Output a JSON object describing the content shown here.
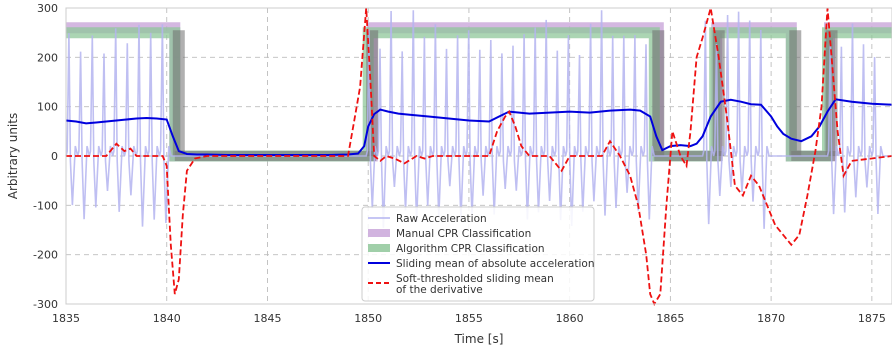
{
  "chart_data": {
    "type": "line",
    "xlabel": "Time [s]",
    "ylabel": "Arbitrary units",
    "xlim": [
      1835,
      1876
    ],
    "ylim": [
      -300,
      300
    ],
    "xticks": [
      1835,
      1840,
      1845,
      1850,
      1855,
      1860,
      1865,
      1870,
      1875
    ],
    "yticks": [
      -300,
      -200,
      -100,
      0,
      100,
      200,
      300
    ],
    "grid": true,
    "legend_position": "lower-center",
    "raw_acceleration": {
      "name": "Raw Acceleration",
      "color": "#b4b4f0",
      "segments": [
        {
          "start": 1835.0,
          "end": 1840.4,
          "period": 0.58
        },
        {
          "start": 1849.9,
          "end": 1864.2,
          "period": 0.55
        },
        {
          "start": 1866.6,
          "end": 1870.0,
          "period": 0.55
        },
        {
          "start": 1872.8,
          "end": 1876.0,
          "period": 0.55
        }
      ],
      "peak_range": [
        200,
        300
      ],
      "trough_range": [
        -150,
        -60
      ]
    },
    "manual_classification": {
      "name": "Manual CPR Classification",
      "color": "#c9a6d9",
      "x": [
        1835.0,
        1840.4,
        1840.4,
        1850.2,
        1850.2,
        1864.4,
        1864.4,
        1867.3,
        1867.3,
        1871.0,
        1871.0,
        1872.9,
        1872.9,
        1876.0
      ],
      "y": [
        260,
        260,
        0,
        0,
        260,
        260,
        0,
        0,
        260,
        260,
        0,
        0,
        260,
        260
      ]
    },
    "algorithm_classification": {
      "name": "Algorithm CPR Classification",
      "color": "#8fc79a",
      "x": [
        1835.0,
        1840.4,
        1840.4,
        1850.0,
        1850.0,
        1864.2,
        1864.2,
        1867.2,
        1867.2,
        1871.0,
        1871.0,
        1872.8,
        1872.8,
        1876.0
      ],
      "y": [
        250,
        250,
        0,
        0,
        250,
        250,
        0,
        0,
        250,
        250,
        0,
        0,
        250,
        250
      ]
    },
    "sliding_mean": {
      "name": "Sliding mean of absolute acceleration",
      "color": "#0000dd",
      "x": [
        1835.0,
        1835.5,
        1836.0,
        1836.5,
        1837.0,
        1837.5,
        1838.0,
        1838.5,
        1839.0,
        1839.5,
        1840.0,
        1840.3,
        1840.6,
        1841.0,
        1841.5,
        1842.0,
        1843.0,
        1844.0,
        1845.0,
        1846.0,
        1847.0,
        1848.0,
        1849.0,
        1849.5,
        1849.8,
        1850.0,
        1850.3,
        1850.6,
        1851.0,
        1851.5,
        1852.0,
        1853.0,
        1854.0,
        1855.0,
        1856.0,
        1856.5,
        1857.0,
        1857.5,
        1858.0,
        1859.0,
        1860.0,
        1861.0,
        1862.0,
        1863.0,
        1863.5,
        1864.0,
        1864.3,
        1864.6,
        1865.0,
        1865.5,
        1866.0,
        1866.3,
        1866.6,
        1867.0,
        1867.5,
        1868.0,
        1868.5,
        1869.0,
        1869.5,
        1870.0,
        1870.3,
        1870.6,
        1871.0,
        1871.5,
        1872.0,
        1872.4,
        1872.8,
        1873.2,
        1874.0,
        1875.0,
        1876.0
      ],
      "y": [
        72,
        70,
        66,
        68,
        70,
        72,
        74,
        76,
        77,
        76,
        74,
        40,
        10,
        4,
        3,
        3,
        2,
        2,
        2,
        2,
        2,
        2,
        3,
        5,
        20,
        60,
        85,
        94,
        90,
        86,
        84,
        80,
        76,
        72,
        70,
        80,
        90,
        88,
        86,
        88,
        90,
        88,
        92,
        94,
        92,
        80,
        40,
        12,
        20,
        22,
        20,
        25,
        40,
        80,
        110,
        114,
        110,
        105,
        104,
        80,
        60,
        45,
        35,
        30,
        40,
        60,
        90,
        115,
        110,
        106,
        104
      ]
    },
    "soft_thresholded_derivative": {
      "name": "Soft-thresholded sliding mean\n of the derivative",
      "color": "#ee1111",
      "x": [
        1835.0,
        1837.0,
        1837.5,
        1837.9,
        1838.2,
        1838.5,
        1839.0,
        1839.4,
        1839.8,
        1840.0,
        1840.1,
        1840.2,
        1840.4,
        1840.6,
        1840.8,
        1841.0,
        1841.4,
        1842.0,
        1843.0,
        1845.0,
        1848.0,
        1849.0,
        1849.3,
        1849.6,
        1849.9,
        1850.1,
        1850.3,
        1850.6,
        1850.9,
        1851.3,
        1851.8,
        1852.4,
        1852.8,
        1853.2,
        1854.0,
        1855.0,
        1856.0,
        1856.4,
        1856.8,
        1857.0,
        1857.3,
        1857.6,
        1858.0,
        1859.0,
        1859.6,
        1860.0,
        1860.4,
        1861.0,
        1861.6,
        1862.0,
        1862.5,
        1863.0,
        1863.4,
        1863.8,
        1864.0,
        1864.2,
        1864.5,
        1864.8,
        1865.1,
        1865.5,
        1865.8,
        1866.0,
        1866.3,
        1866.6,
        1867.0,
        1867.4,
        1867.8,
        1868.2,
        1868.6,
        1869.0,
        1869.4,
        1869.8,
        1870.2,
        1870.6,
        1871.0,
        1871.4,
        1871.8,
        1872.2,
        1872.5,
        1872.8,
        1873.0,
        1873.3,
        1873.6,
        1874.0,
        1876.0
      ],
      "y": [
        0,
        0,
        25,
        10,
        15,
        0,
        0,
        0,
        0,
        -20,
        -100,
        -180,
        -280,
        -250,
        -120,
        -30,
        -5,
        0,
        0,
        0,
        0,
        0,
        70,
        140,
        300,
        160,
        0,
        -10,
        0,
        -5,
        -15,
        0,
        -5,
        0,
        0,
        0,
        0,
        50,
        80,
        90,
        60,
        20,
        0,
        0,
        -30,
        0,
        0,
        0,
        0,
        30,
        0,
        -40,
        -100,
        -200,
        -280,
        -300,
        -280,
        -100,
        50,
        0,
        -20,
        50,
        200,
        240,
        300,
        200,
        80,
        -60,
        -80,
        -40,
        -60,
        -100,
        -140,
        -160,
        -180,
        -160,
        -80,
        10,
        100,
        300,
        200,
        50,
        -40,
        -10,
        0
      ]
    },
    "legend": [
      {
        "label": "Raw Acceleration",
        "color": "#b4b4f0",
        "style": "thin"
      },
      {
        "label": "Manual CPR Classification",
        "color": "#c9a6d9",
        "style": "band"
      },
      {
        "label": "Algorithm CPR Classification",
        "color": "#8fc79a",
        "style": "band"
      },
      {
        "label": "Sliding mean of absolute acceleration",
        "color": "#0000dd",
        "style": "solid"
      },
      {
        "label": "Soft-thresholded sliding mean",
        "label2": " of the derivative",
        "color": "#ee1111",
        "style": "dashed"
      }
    ]
  }
}
